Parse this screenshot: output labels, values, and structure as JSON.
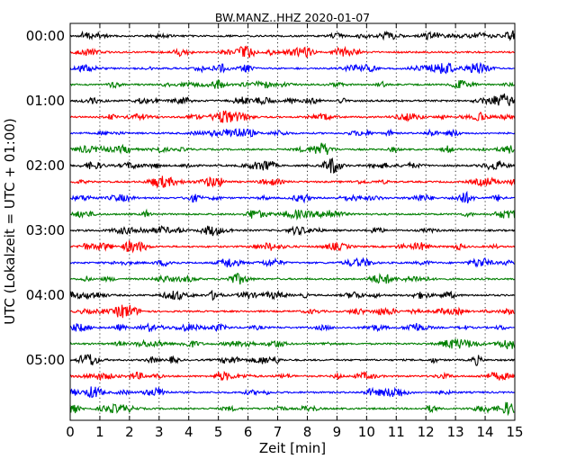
{
  "chart_data": {
    "type": "line",
    "title": "BW.MANZ..HHZ 2020-01-07",
    "xlabel": "Zeit  [min]",
    "ylabel": "UTC (Lokalzeit = UTC + 01:00)",
    "xlim": [
      0,
      15
    ],
    "x_ticks": [
      "0",
      "1",
      "2",
      "3",
      "4",
      "5",
      "6",
      "7",
      "8",
      "9",
      "10",
      "11",
      "12",
      "13",
      "14",
      "15"
    ],
    "y_ticks": [
      "00:00",
      "01:00",
      "02:00",
      "03:00",
      "04:00",
      "05:00"
    ],
    "grid": "vertical dotted lines at each minute",
    "trace_interval_min": 15,
    "trace_count": 24,
    "trace_colors": [
      "#000000",
      "#ff0000",
      "#0000ff",
      "#007f00"
    ]
  }
}
